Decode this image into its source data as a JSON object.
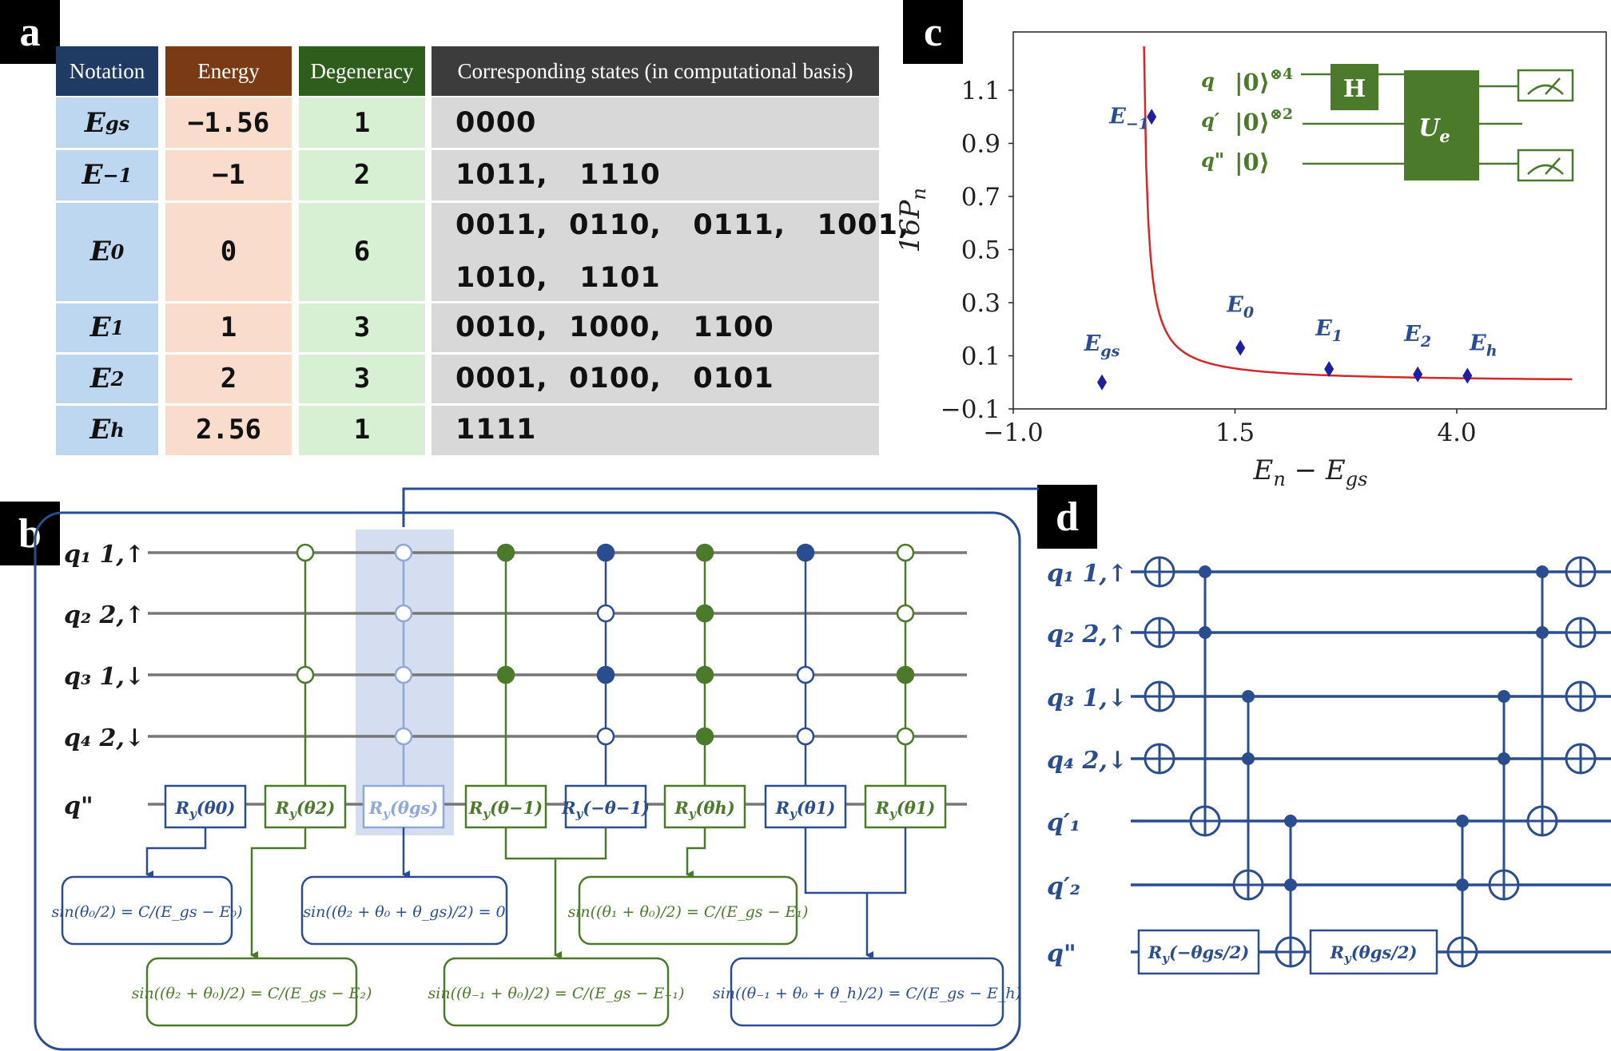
{
  "panels": {
    "a": "a",
    "b": "b",
    "c": "c",
    "d": "d"
  },
  "table": {
    "headers": [
      "Notation",
      "Energy",
      "Degeneracy",
      "Corresponding states (in computational basis)"
    ],
    "header_colors": [
      "#1f3a63",
      "#7a3a14",
      "#2f5e1c",
      "#3c3c3c"
    ],
    "rows": [
      {
        "notation_base": "E",
        "notation_sub": "gs",
        "energy": "−1.56",
        "degeneracy": "1",
        "states": "0000"
      },
      {
        "notation_base": "E",
        "notation_sub": "−1",
        "energy": "−1",
        "degeneracy": "2",
        "states": "1011,   1110"
      },
      {
        "notation_base": "E",
        "notation_sub": "0",
        "energy": "0",
        "degeneracy": "6",
        "states": "0011,  0110,   0111,   1001,\n1010,   1101"
      },
      {
        "notation_base": "E",
        "notation_sub": "1",
        "energy": "1",
        "degeneracy": "3",
        "states": "0010,  1000,   1100"
      },
      {
        "notation_base": "E",
        "notation_sub": "2",
        "energy": "2",
        "degeneracy": "3",
        "states": "0001,  0100,   0101"
      },
      {
        "notation_base": "E",
        "notation_sub": "h",
        "energy": "2.56",
        "degeneracy": "1",
        "states": "1111"
      }
    ]
  },
  "chart_data": {
    "type": "scatter",
    "xlabel": "E_n − E_gs",
    "ylabel": "16P_n",
    "x_ticks": [
      "−1.0",
      "1.5",
      "4.0"
    ],
    "y_ticks": [
      "−0.1",
      "0.1",
      "0.3",
      "0.5",
      "0.7",
      "0.9",
      "1.1"
    ],
    "xlim": [
      -1.0,
      5.4
    ],
    "ylim": [
      -0.1,
      1.27
    ],
    "points": [
      {
        "label": "E_gs",
        "x": 0.0,
        "y": 0.0
      },
      {
        "label": "E_−1",
        "x": 0.56,
        "y": 1.0
      },
      {
        "label": "E_0",
        "x": 1.56,
        "y": 0.13
      },
      {
        "label": "E_1",
        "x": 2.56,
        "y": 0.05
      },
      {
        "label": "E_2",
        "x": 3.56,
        "y": 0.03
      },
      {
        "label": "E_h",
        "x": 4.12,
        "y": 0.025
      }
    ],
    "curve": "fit",
    "curve_color": "#d62728",
    "marker_color": "#1f1fa0",
    "inset": {
      "q": "q",
      "q_state": "|0⟩⊗4",
      "qp": "q′",
      "qp_state": "|0⟩⊗2",
      "qpp": "q\"",
      "qpp_state": "|0⟩",
      "h_gate": "H",
      "u_gate": "U_e"
    }
  },
  "circuit_b": {
    "wire_labels": [
      "q₁ 1,↑",
      "q₂ 2,↑",
      "q₃ 1,↓",
      "q₄ 2,↓",
      "q\""
    ],
    "gates": [
      "R_y(θ_0)",
      "R_y(θ_2)",
      "R_y(θ_gs)",
      "R_y(θ_−1)",
      "R_y(−θ_−1)",
      "R_y(θ_h)",
      "R_y(θ_1)",
      "R_y(θ_1)"
    ],
    "equations": [
      "sin(θ₀/2) = C/(E_gs − E₀)",
      "sin((θ₂ + θ₀)/2) = C/(E_gs − E₂)",
      "sin((θ₂ + θ₀ + θ_gs)/2) = 0",
      "sin((θ₋₁ + θ₀)/2) = C/(E_gs − E₋₁)",
      "sin((θ₁ + θ₀)/2) = C/(E_gs − E₁)",
      "sin((θ₋₁ + θ₀ + θ_h)/2) = C/(E_gs − E_h)"
    ],
    "colors": {
      "blue": "#2a4d8f",
      "green": "#4a7a2a",
      "light": "#8fa8d8",
      "highlight": "#d5ddf0",
      "wire": "#777777"
    }
  },
  "circuit_d": {
    "wire_labels": [
      "q₁ 1,↑",
      "q₂ 2,↑",
      "q₃ 1,↓",
      "q₄ 2,↓",
      "q′₁",
      "q′₂",
      "q\""
    ],
    "gates": [
      "R_y(−θ_gs/2)",
      "R_y(θ_gs/2)"
    ]
  }
}
